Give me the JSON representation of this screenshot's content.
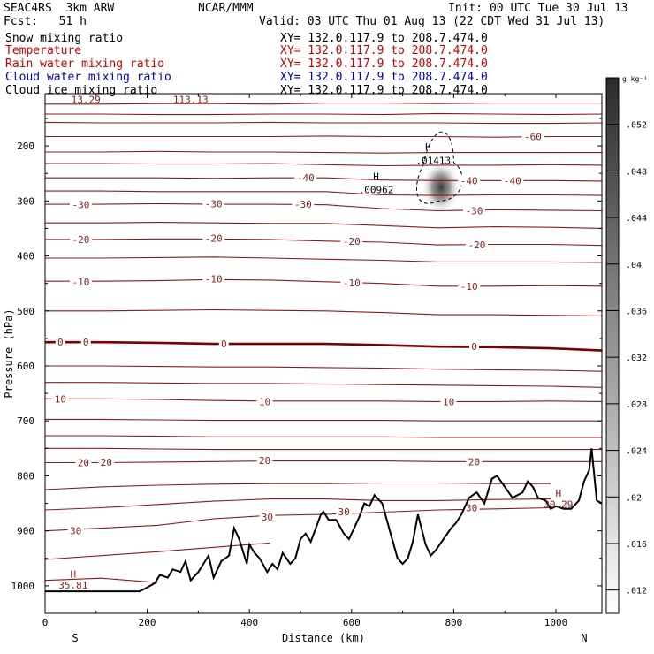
{
  "header": {
    "model": "SEAC4RS  3km ARW",
    "center": "NCAR/MMM",
    "init": "Init: 00 UTC Tue 30 Jul 13",
    "fcst": "Fcst:   51 h",
    "valid": "Valid: 03 UTC Thu 01 Aug 13 (22 CDT Wed 31 Jul 13)"
  },
  "fields": [
    {
      "name": "Snow mixing ratio",
      "xy": "XY= 132.0.117.9 to 208.7.474.0",
      "color": "#000000"
    },
    {
      "name": "Temperature",
      "xy": "XY= 132.0.117.9 to 208.7.474.0",
      "color": "#cc0000"
    },
    {
      "name": "Rain water mixing ratio",
      "xy": "XY= 132.0.117.9 to 208.7.474.0",
      "color": "#cc0000"
    },
    {
      "name": "Cloud water mixing ratio",
      "xy": "XY= 132.0.117.9 to 208.7.474.0",
      "color": "#0000bb"
    },
    {
      "name": "Cloud ice mixing ratio",
      "xy": "XY= 132.0.117.9 to 208.7.474.0",
      "color": "#000000"
    }
  ],
  "colors": {
    "isotherm": "#8b1a1a",
    "zero_isotherm": "#7a0000",
    "terrain": "#000000"
  },
  "chart_data": {
    "type": "line",
    "xlabel": "Distance (km)",
    "ylabel": "Pressure (hPa)",
    "xlim": [
      0,
      1090
    ],
    "ylim": [
      1050,
      105
    ],
    "x_ticks": [
      0,
      200,
      400,
      600,
      800,
      1000
    ],
    "y_ticks": [
      200,
      300,
      400,
      500,
      600,
      700,
      800,
      900,
      1000
    ],
    "x_end_labels": {
      "left": "S",
      "right": "N"
    },
    "isotherm_labels": [
      {
        "value": "-60",
        "x": 955,
        "p": 183
      },
      {
        "value": "-40",
        "x": 510,
        "p": 258
      },
      {
        "value": "-40",
        "x": 830,
        "p": 263
      },
      {
        "value": "-40",
        "x": 915,
        "p": 263
      },
      {
        "value": "-30",
        "x": 70,
        "p": 307
      },
      {
        "value": "-30",
        "x": 330,
        "p": 305
      },
      {
        "value": "-30",
        "x": 505,
        "p": 306
      },
      {
        "value": "-30",
        "x": 840,
        "p": 318
      },
      {
        "value": "-20",
        "x": 70,
        "p": 370
      },
      {
        "value": "-20",
        "x": 330,
        "p": 368
      },
      {
        "value": "-20",
        "x": 600,
        "p": 373
      },
      {
        "value": "-20",
        "x": 845,
        "p": 380
      },
      {
        "value": "-10",
        "x": 70,
        "p": 447
      },
      {
        "value": "-10",
        "x": 330,
        "p": 442
      },
      {
        "value": "-10",
        "x": 600,
        "p": 449
      },
      {
        "value": "-10",
        "x": 830,
        "p": 455
      },
      {
        "value": "0",
        "x": 30,
        "p": 557
      },
      {
        "value": "0",
        "x": 80,
        "p": 557
      },
      {
        "value": "0",
        "x": 350,
        "p": 560
      },
      {
        "value": "0",
        "x": 840,
        "p": 565
      },
      {
        "value": "10",
        "x": 30,
        "p": 660
      },
      {
        "value": "10",
        "x": 430,
        "p": 665
      },
      {
        "value": "10",
        "x": 790,
        "p": 665
      },
      {
        "value": "20",
        "x": 75,
        "p": 776
      },
      {
        "value": "20",
        "x": 120,
        "p": 775
      },
      {
        "value": "20",
        "x": 430,
        "p": 772
      },
      {
        "value": "20",
        "x": 840,
        "p": 774
      },
      {
        "value": "30",
        "x": 60,
        "p": 900
      },
      {
        "value": "30",
        "x": 435,
        "p": 875
      },
      {
        "value": "30",
        "x": 585,
        "p": 865
      },
      {
        "value": "30",
        "x": 835,
        "p": 858
      }
    ],
    "extrema_labels": [
      {
        "text": "H",
        "x": 55,
        "p": 985
      },
      {
        "text": "35.81",
        "x": 55,
        "p": 1005
      },
      {
        "text": "H",
        "x": 1005,
        "p": 838
      },
      {
        "text": "30.29",
        "x": 1005,
        "p": 858
      },
      {
        "text": "H",
        "x": 648,
        "p": 262
      },
      {
        "text": ".00962",
        "x": 648,
        "p": 286
      },
      {
        "text": "H",
        "x": 750,
        "p": 208
      },
      {
        "text": ".01413",
        "x": 760,
        "p": 233
      }
    ],
    "overlap_labels": [
      {
        "text": "13.29",
        "x": 80,
        "p": 122
      },
      {
        "text": "113.13",
        "x": 285,
        "p": 122
      }
    ],
    "snow_max": {
      "x": 775,
      "p": 275,
      "value": 0.055
    },
    "colorbar": {
      "unit": "g kg⁻¹",
      "ticks": [
        ".052",
        ".048",
        ".044",
        ".04",
        ".036",
        ".032",
        ".028",
        ".024",
        ".02",
        ".016",
        ".012"
      ],
      "min": 0.01,
      "max": 0.056
    },
    "terrain": {
      "x": [
        0,
        60,
        100,
        150,
        185,
        200,
        215,
        225,
        240,
        250,
        265,
        275,
        285,
        300,
        310,
        320,
        330,
        345,
        360,
        370,
        380,
        395,
        400,
        410,
        420,
        435,
        445,
        455,
        465,
        480,
        490,
        500,
        510,
        520,
        530,
        540,
        545,
        555,
        570,
        585,
        595,
        605,
        615,
        625,
        635,
        645,
        660,
        675,
        690,
        700,
        710,
        720,
        725,
        730,
        745,
        755,
        765,
        780,
        795,
        805,
        815,
        830,
        845,
        860,
        875,
        885,
        900,
        915,
        935,
        945,
        955,
        965,
        980,
        990,
        1000,
        1015,
        1030,
        1045,
        1055,
        1065,
        1070,
        1080,
        1090
      ],
      "p": [
        1010,
        1010,
        1010,
        1010,
        1010,
        1003,
        995,
        980,
        985,
        970,
        975,
        955,
        990,
        975,
        960,
        945,
        985,
        955,
        945,
        895,
        915,
        960,
        925,
        940,
        950,
        975,
        960,
        970,
        940,
        960,
        950,
        915,
        905,
        920,
        895,
        870,
        865,
        880,
        880,
        905,
        915,
        895,
        875,
        850,
        855,
        835,
        850,
        900,
        950,
        960,
        950,
        920,
        895,
        870,
        925,
        945,
        935,
        915,
        895,
        885,
        870,
        840,
        830,
        850,
        805,
        800,
        820,
        840,
        830,
        810,
        820,
        840,
        845,
        860,
        855,
        860,
        860,
        845,
        810,
        790,
        750,
        845,
        850
      ]
    },
    "isotherm_lines": [
      {
        "t": -70,
        "p": [
          124,
          124,
          123,
          123,
          124,
          122,
          122,
          123,
          122,
          122,
          122
        ]
      },
      {
        "t": -65,
        "p": [
          142,
          142,
          143,
          143,
          142,
          142,
          143,
          141,
          142,
          143,
          142
        ]
      },
      {
        "t": -62,
        "p": [
          157,
          158,
          158,
          158,
          157,
          158,
          158,
          158,
          159,
          159,
          158
        ]
      },
      {
        "t": -60,
        "p": [
          183,
          183,
          183,
          183,
          183,
          182,
          183,
          183,
          184,
          183,
          183
        ]
      },
      {
        "t": -50,
        "p": [
          211,
          211,
          210,
          211,
          211,
          212,
          213,
          212,
          212,
          212,
          212
        ]
      },
      {
        "t": -45,
        "p": [
          232,
          232,
          233,
          233,
          232,
          234,
          236,
          235,
          235,
          234,
          235
        ]
      },
      {
        "t": -40,
        "p": [
          258,
          258,
          258,
          259,
          258,
          258,
          262,
          263,
          263,
          263,
          264
        ]
      },
      {
        "t": -35,
        "p": [
          282,
          282,
          283,
          283,
          283,
          283,
          289,
          290,
          289,
          289,
          290
        ]
      },
      {
        "t": -30,
        "p": [
          306,
          306,
          305,
          306,
          306,
          307,
          314,
          318,
          316,
          317,
          318
        ]
      },
      {
        "t": -25,
        "p": [
          340,
          340,
          339,
          340,
          341,
          341,
          345,
          349,
          347,
          348,
          350
        ]
      },
      {
        "t": -20,
        "p": [
          370,
          370,
          369,
          369,
          370,
          373,
          375,
          380,
          379,
          379,
          381
        ]
      },
      {
        "t": -15,
        "p": [
          404,
          404,
          403,
          402,
          404,
          406,
          408,
          411,
          411,
          411,
          412
        ]
      },
      {
        "t": -10,
        "p": [
          446,
          446,
          445,
          443,
          444,
          447,
          450,
          455,
          455,
          454,
          455
        ]
      },
      {
        "t": -5,
        "p": [
          500,
          500,
          499,
          498,
          499,
          500,
          503,
          507,
          507,
          508,
          509
        ]
      },
      {
        "t": 0,
        "p": [
          557,
          557,
          558,
          560,
          560,
          560,
          562,
          565,
          566,
          568,
          572
        ]
      },
      {
        "t": 3,
        "p": [
          600,
          600,
          601,
          602,
          602,
          603,
          604,
          606,
          607,
          608,
          610
        ]
      },
      {
        "t": 6,
        "p": [
          630,
          630,
          631,
          632,
          632,
          633,
          634,
          635,
          636,
          637,
          639
        ]
      },
      {
        "t": 10,
        "p": [
          660,
          660,
          661,
          663,
          664,
          664,
          664,
          665,
          665,
          664,
          665
        ]
      },
      {
        "t": 13,
        "p": [
          697,
          697,
          698,
          699,
          699,
          699,
          699,
          700,
          700,
          700,
          700
        ]
      },
      {
        "t": 16,
        "p": [
          727,
          727,
          728,
          729,
          729,
          729,
          729,
          730,
          730,
          730,
          730
        ]
      },
      {
        "t": 18,
        "p": [
          750,
          750,
          751,
          752,
          752,
          752,
          752,
          752,
          752,
          752,
          752
        ]
      },
      {
        "t": 20,
        "p": [
          776,
          776,
          775,
          774,
          773,
          773,
          773,
          774,
          774,
          774,
          774
        ]
      },
      {
        "t": 24,
        "p": [
          825,
          820,
          817,
          815,
          814,
          814,
          813,
          813,
          814,
          814,
          null
        ]
      },
      {
        "t": 27,
        "p": [
          862,
          858,
          852,
          846,
          842,
          842,
          845,
          845,
          843,
          842,
          null
        ]
      },
      {
        "t": 30,
        "p": [
          900,
          895,
          890,
          878,
          872,
          870,
          866,
          862,
          860,
          858,
          null
        ]
      },
      {
        "t": 33,
        "p": [
          952,
          945,
          938,
          930,
          922,
          null,
          null,
          null,
          null,
          null,
          null
        ]
      },
      {
        "t": 35,
        "p": [
          990,
          986,
          994,
          null,
          null,
          null,
          null,
          null,
          null,
          null,
          null
        ]
      }
    ],
    "isotherm_x": [
      0,
      110,
      220,
      330,
      440,
      550,
      660,
      770,
      880,
      990,
      1090
    ]
  }
}
